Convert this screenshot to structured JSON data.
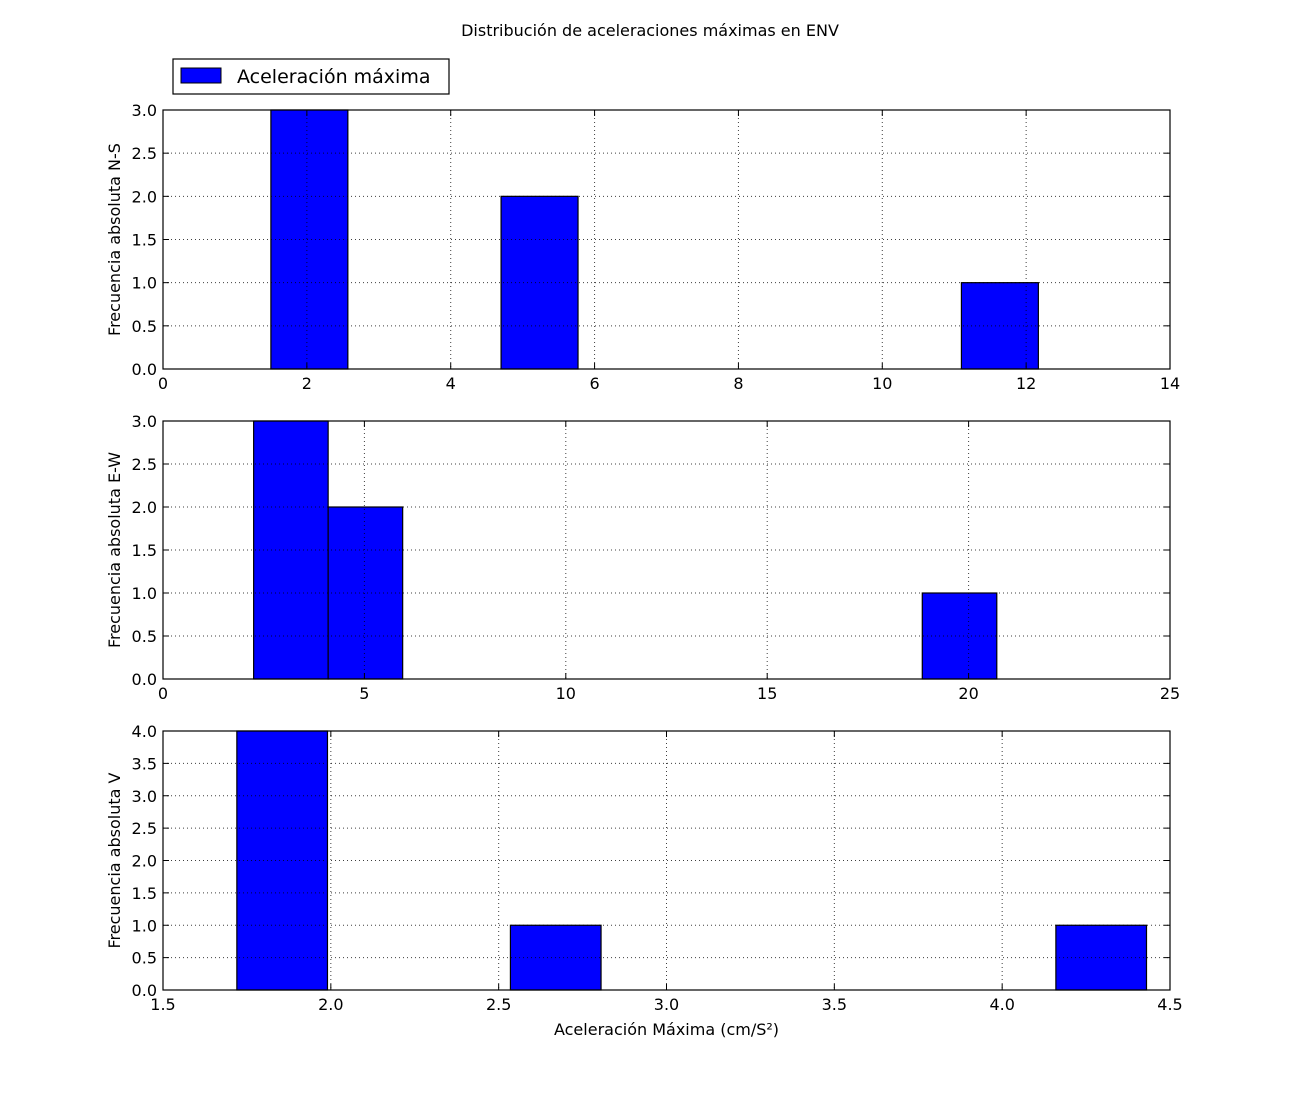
{
  "figure": {
    "title": "Distribución de aceleraciones máximas en ENV",
    "legend": {
      "label": "Aceleración máxima",
      "position": "above-top-left",
      "color": "#0000ff"
    }
  },
  "chart_data": [
    {
      "type": "bar",
      "ylabel": "Frecuencia absoluta N-S",
      "xlabel": "",
      "xlim": [
        0,
        14
      ],
      "ylim": [
        0,
        3.0
      ],
      "xticks": [
        0,
        2,
        4,
        6,
        8,
        10,
        12,
        14
      ],
      "yticks": [
        0.0,
        0.5,
        1.0,
        1.5,
        2.0,
        2.5,
        3.0
      ],
      "xtick_labels": [
        "0",
        "2",
        "4",
        "6",
        "8",
        "10",
        "12",
        "14"
      ],
      "ytick_labels": [
        "0.0",
        "0.5",
        "1.0",
        "1.5",
        "2.0",
        "2.5",
        "3.0"
      ],
      "grid": true,
      "bars": [
        {
          "x0": 1.5,
          "x1": 2.57,
          "value": 3
        },
        {
          "x0": 4.7,
          "x1": 5.77,
          "value": 2
        },
        {
          "x0": 11.1,
          "x1": 12.17,
          "value": 1
        }
      ]
    },
    {
      "type": "bar",
      "ylabel": "Frecuencia absoluta E-W",
      "xlabel": "",
      "xlim": [
        0,
        25
      ],
      "ylim": [
        0,
        3.0
      ],
      "xticks": [
        0,
        5,
        10,
        15,
        20,
        25
      ],
      "yticks": [
        0.0,
        0.5,
        1.0,
        1.5,
        2.0,
        2.5,
        3.0
      ],
      "xtick_labels": [
        "0",
        "5",
        "10",
        "15",
        "20",
        "25"
      ],
      "ytick_labels": [
        "0.0",
        "0.5",
        "1.0",
        "1.5",
        "2.0",
        "2.5",
        "3.0"
      ],
      "grid": true,
      "bars": [
        {
          "x0": 2.25,
          "x1": 4.1,
          "value": 3
        },
        {
          "x0": 4.1,
          "x1": 5.95,
          "value": 2
        },
        {
          "x0": 18.85,
          "x1": 20.7,
          "value": 1
        }
      ]
    },
    {
      "type": "bar",
      "ylabel": "Frecuencia absoluta V",
      "xlabel": "Aceleración Máxima (cm/S²)",
      "xlim": [
        1.5,
        4.5
      ],
      "ylim": [
        0,
        4.0
      ],
      "xticks": [
        1.5,
        2.0,
        2.5,
        3.0,
        3.5,
        4.0,
        4.5
      ],
      "yticks": [
        0.0,
        0.5,
        1.0,
        1.5,
        2.0,
        2.5,
        3.0,
        3.5,
        4.0
      ],
      "xtick_labels": [
        "1.5",
        "2.0",
        "2.5",
        "3.0",
        "3.5",
        "4.0",
        "4.5"
      ],
      "ytick_labels": [
        "0.0",
        "0.5",
        "1.0",
        "1.5",
        "2.0",
        "2.5",
        "3.0",
        "3.5",
        "4.0"
      ],
      "grid": true,
      "bars": [
        {
          "x0": 1.72,
          "x1": 1.99,
          "value": 4
        },
        {
          "x0": 2.535,
          "x1": 2.805,
          "value": 1
        },
        {
          "x0": 4.16,
          "x1": 4.43,
          "value": 1
        }
      ]
    }
  ]
}
